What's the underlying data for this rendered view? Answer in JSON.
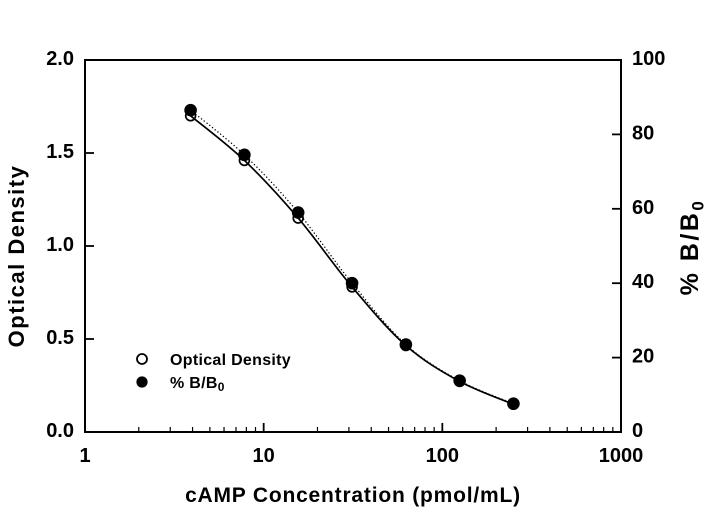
{
  "figure": {
    "background": "#ffffff",
    "ink_color": "#000000"
  },
  "chart_data": {
    "type": "scatter",
    "title": "",
    "xlabel": "cAMP Concentration (pmol/mL)",
    "x_scale": "log",
    "x_range": [
      1,
      1000
    ],
    "x_tick_labels": [
      "1",
      "10",
      "100",
      "1000"
    ],
    "x_tick_values": [
      1,
      10,
      100,
      1000
    ],
    "y_left": {
      "label": "Optical Density",
      "range": [
        0.0,
        2.0
      ],
      "tick_labels": [
        "0.0",
        "0.5",
        "1.0",
        "1.5",
        "2.0"
      ],
      "tick_values": [
        0.0,
        0.5,
        1.0,
        1.5,
        2.0
      ]
    },
    "y_right": {
      "label": "% B/B",
      "label_subscript": "0",
      "range": [
        0,
        100
      ],
      "tick_labels": [
        "0",
        "20",
        "40",
        "60",
        "80",
        "100"
      ],
      "tick_values": [
        0,
        20,
        40,
        60,
        80,
        100
      ]
    },
    "x": [
      3.9,
      7.8,
      15.6,
      31.25,
      62.5,
      125,
      250
    ],
    "series": [
      {
        "name": "Optical Density",
        "axis": "left",
        "marker": "open-circle",
        "line": "solid",
        "values": [
          1.7,
          1.46,
          1.15,
          0.78,
          0.465,
          0.272,
          0.149
        ]
      },
      {
        "name": "% B/B0",
        "axis": "right",
        "marker": "filled-circle",
        "line": "dotted",
        "values": [
          86.5,
          74.5,
          59.0,
          40.0,
          23.5,
          13.8,
          7.6
        ]
      }
    ],
    "legend": {
      "position": "inside-lower-left",
      "items": [
        {
          "label": "Optical Density",
          "label_subscript": "",
          "marker": "open-circle"
        },
        {
          "label": "% B/B",
          "label_subscript": "0",
          "marker": "filled-circle"
        }
      ]
    },
    "grid": "off"
  }
}
